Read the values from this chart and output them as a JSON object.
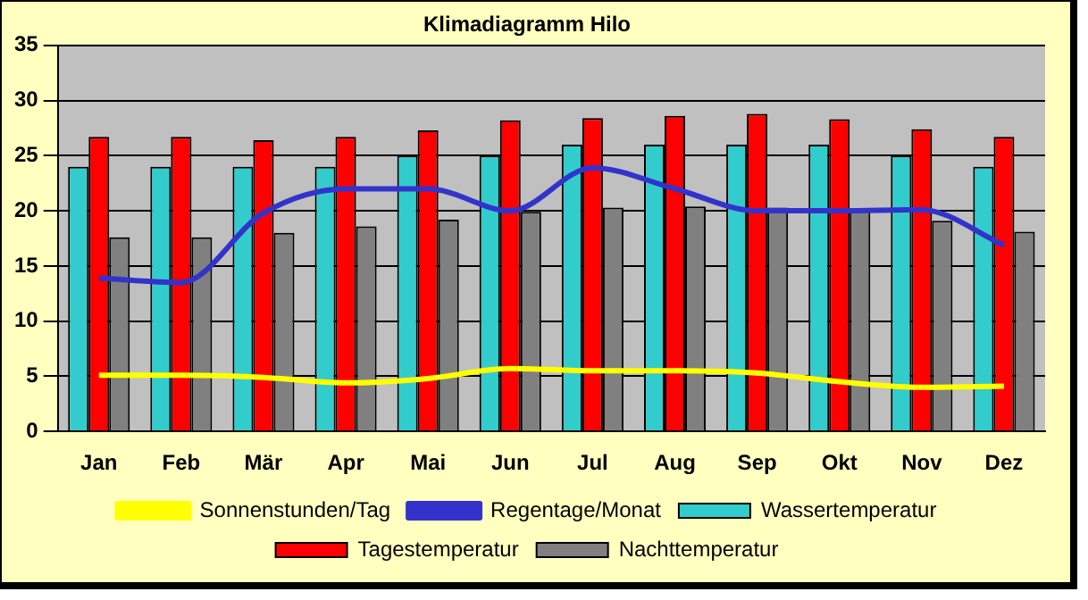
{
  "chart_data": {
    "type": "bar",
    "title": "Klimadiagramm Hilo",
    "categories": [
      "Jan",
      "Feb",
      "Mär",
      "Apr",
      "Mai",
      "Jun",
      "Jul",
      "Aug",
      "Sep",
      "Okt",
      "Nov",
      "Dez"
    ],
    "series": [
      {
        "name": "Wassertemperatur",
        "color": "#33cccc",
        "values": [
          24,
          24,
          24,
          24,
          25,
          25,
          26,
          26,
          26,
          26,
          25,
          24
        ]
      },
      {
        "name": "Tagestemperatur",
        "color": "#ff0000",
        "values": [
          26.7,
          26.7,
          26.4,
          26.7,
          27.3,
          28.2,
          28.4,
          28.6,
          28.8,
          28.3,
          27.4,
          26.7
        ]
      },
      {
        "name": "Nachttemperatur",
        "color": "#808080",
        "values": [
          17.6,
          17.6,
          18,
          18.6,
          19.2,
          19.9,
          20.3,
          20.4,
          20.3,
          20,
          19.1,
          18.1
        ]
      },
      {
        "name": "Sonnenstunden/Tag",
        "type": "line",
        "color": "#ffff00",
        "values": [
          5.1,
          5.1,
          4.9,
          4.4,
          4.8,
          5.7,
          5.5,
          5.5,
          5.3,
          4.5,
          4,
          4.1
        ]
      },
      {
        "name": "Regentage/Monat",
        "type": "line",
        "color": "#3333cc",
        "values": [
          13.9,
          13.5,
          19.8,
          22,
          22,
          20,
          23.9,
          22,
          20,
          20,
          20.1,
          16.9
        ]
      }
    ],
    "ylim": [
      0,
      35
    ],
    "yticks": [
      0,
      5,
      10,
      15,
      20,
      25,
      30,
      35
    ],
    "grid": "y",
    "legend": "bottom",
    "marker": "none"
  }
}
